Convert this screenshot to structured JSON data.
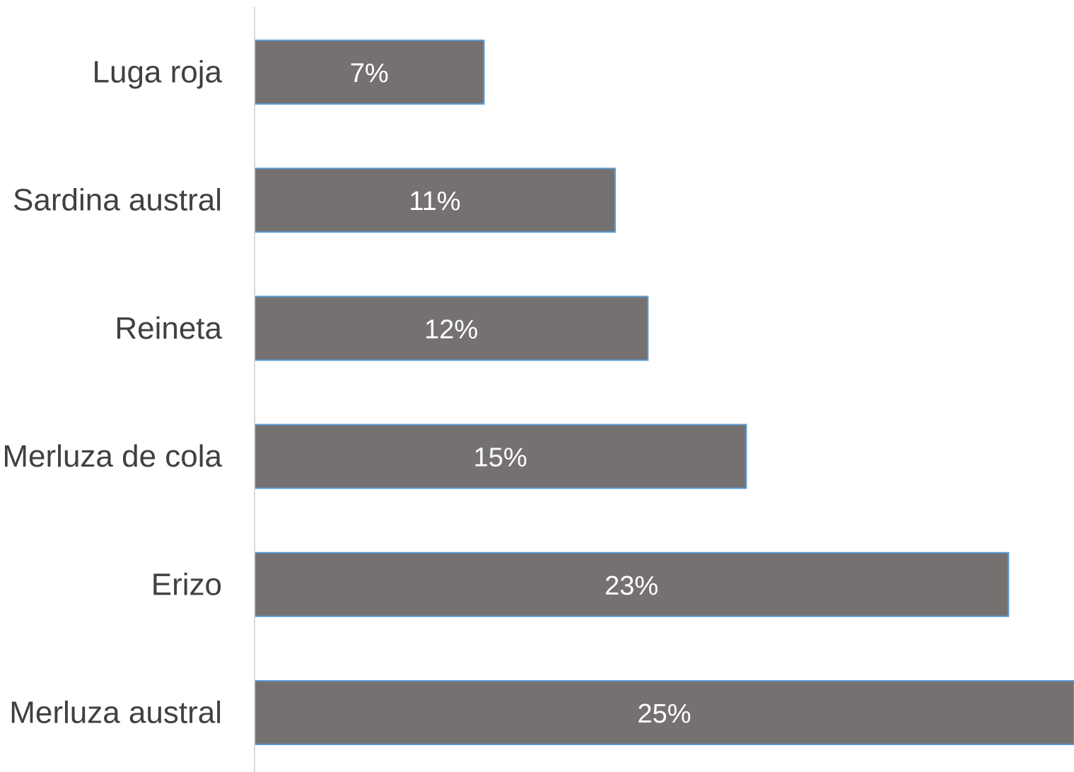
{
  "chart_data": {
    "type": "bar",
    "orientation": "horizontal",
    "categories": [
      "Luga roja",
      "Sardina austral",
      "Reineta",
      "Merluza de cola",
      "Erizo",
      "Merluza austral"
    ],
    "values": [
      7,
      11,
      12,
      15,
      23,
      25
    ],
    "value_labels": [
      "7%",
      "11%",
      "12%",
      "15%",
      "23%",
      "25%"
    ],
    "unit": "%",
    "xlim": [
      0,
      25
    ],
    "title": "",
    "xlabel": "",
    "ylabel": "",
    "grid": false,
    "legend": "none",
    "colors": {
      "bar_fill": "#767171",
      "bar_border": "#5B9BD5",
      "axis_line": "#D9D9D9",
      "category_text": "#404040",
      "value_text": "#FFFFFF"
    }
  }
}
